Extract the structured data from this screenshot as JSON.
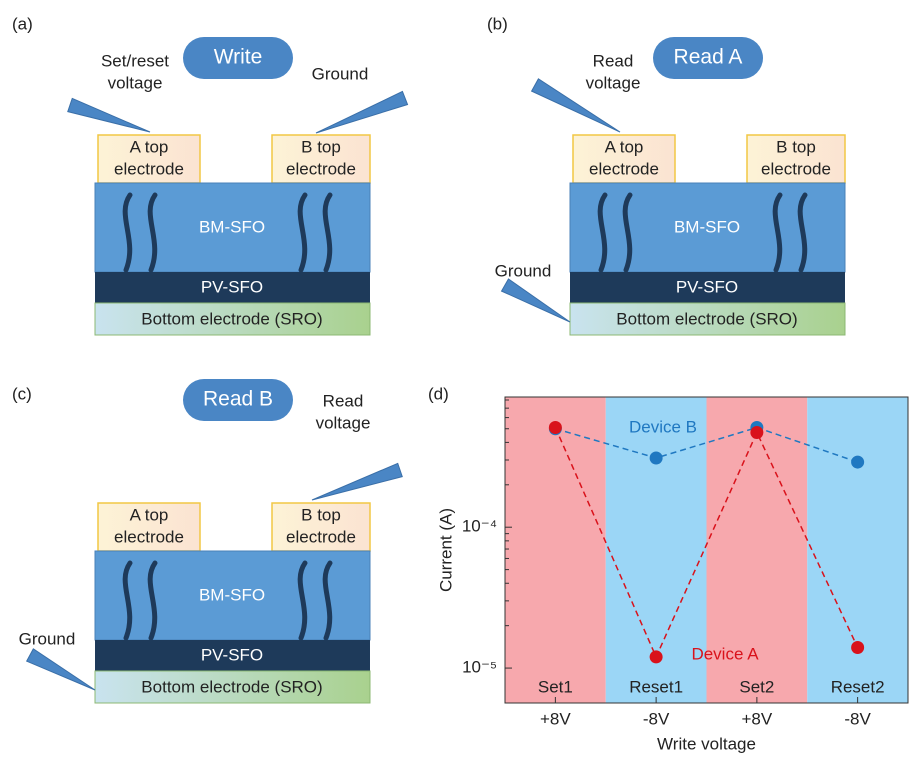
{
  "panels": [
    {
      "label": "(a)",
      "mode": "Write",
      "top_electrodes": [
        [
          "A top",
          "electrode"
        ],
        [
          "B top",
          "electrode"
        ]
      ],
      "layers": [
        "BM-SFO",
        "PV-SFO",
        "Bottom electrode (SRO)"
      ],
      "probes": [
        [
          "Set/reset",
          "voltage"
        ],
        [
          "Ground"
        ]
      ]
    },
    {
      "label": "(b)",
      "mode": "Read A",
      "top_electrodes": [
        [
          "A top",
          "electrode"
        ],
        [
          "B top",
          "electrode"
        ]
      ],
      "layers": [
        "BM-SFO",
        "PV-SFO",
        "Bottom electrode (SRO)"
      ],
      "probes": [
        [
          "Read",
          "voltage"
        ],
        [
          "Ground"
        ]
      ]
    },
    {
      "label": "(c)",
      "mode": "Read B",
      "top_electrodes": [
        [
          "A top",
          "electrode"
        ],
        [
          "B top",
          "electrode"
        ]
      ],
      "layers": [
        "BM-SFO",
        "PV-SFO",
        "Bottom electrode (SRO)"
      ],
      "probes": [
        [
          "Read",
          "voltage"
        ],
        [
          "Ground"
        ]
      ]
    }
  ],
  "chart_data": {
    "type": "line",
    "panel_label": "(d)",
    "x_label": "Write voltage",
    "y_label": "Current (A)",
    "categories": [
      "+8V",
      "-8V",
      "+8V",
      "-8V"
    ],
    "regions": [
      {
        "label": "Set1",
        "color": "#f7a8ad"
      },
      {
        "label": "Reset1",
        "color": "#9bd6f6"
      },
      {
        "label": "Set2",
        "color": "#f7a8ad"
      },
      {
        "label": "Reset2",
        "color": "#9bd6f6"
      }
    ],
    "series": [
      {
        "name": "Device B",
        "color": "#1f78c1",
        "values": [
          0.0005,
          0.00031,
          0.00051,
          0.00029
        ]
      },
      {
        "name": "Device A",
        "color": "#d9121b",
        "values": [
          0.00051,
          1.2e-05,
          0.00047,
          1.4e-05
        ]
      }
    ],
    "ylog": true,
    "ylim": [
      5.65e-06,
      0.00084
    ],
    "yticks": [
      {
        "value": 1e-05,
        "label": "10⁻⁵"
      },
      {
        "value": 0.0001,
        "label": "10⁻⁴"
      }
    ]
  }
}
